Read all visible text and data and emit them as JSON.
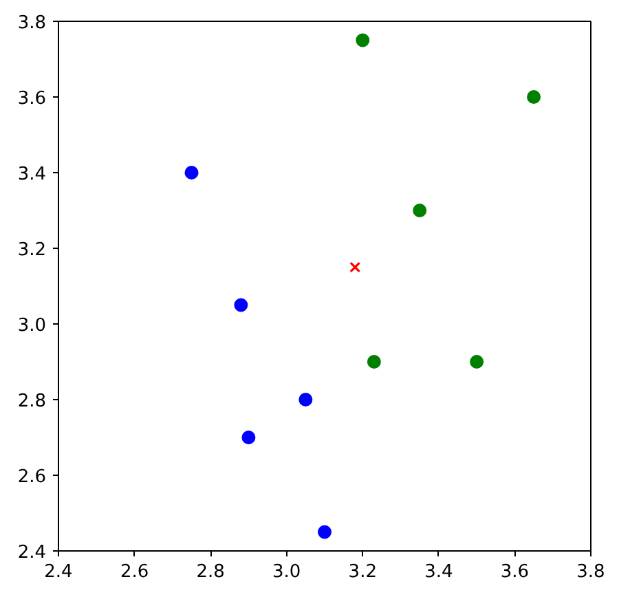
{
  "chart_data": {
    "type": "scatter",
    "xlim": [
      2.4,
      3.8
    ],
    "ylim": [
      2.4,
      3.8
    ],
    "xticks": [
      2.4,
      2.6,
      2.8,
      {
        "value": 3,
        "label": "3.0"
      },
      3.2,
      3.4,
      3.6,
      3.8
    ],
    "yticks": [
      2.4,
      2.6,
      2.8,
      {
        "value": 3,
        "label": "3.0"
      },
      3.2,
      3.4,
      3.6,
      3.8
    ],
    "series": [
      {
        "marker": "circle",
        "color": "#0000ff",
        "x": [
          2.75,
          2.88,
          2.9,
          3.05,
          3.1
        ],
        "values": [
          3.4,
          3.05,
          2.7,
          2.8,
          2.45
        ]
      },
      {
        "marker": "circle",
        "color": "#008000",
        "x": [
          3.2,
          3.65,
          3.35,
          3.23,
          3.5
        ],
        "values": [
          3.75,
          3.6,
          3.3,
          2.9,
          2.9
        ]
      },
      {
        "marker": "cross",
        "color": "#ff0000",
        "x": [
          3.18
        ],
        "values": [
          3.15
        ]
      }
    ]
  }
}
